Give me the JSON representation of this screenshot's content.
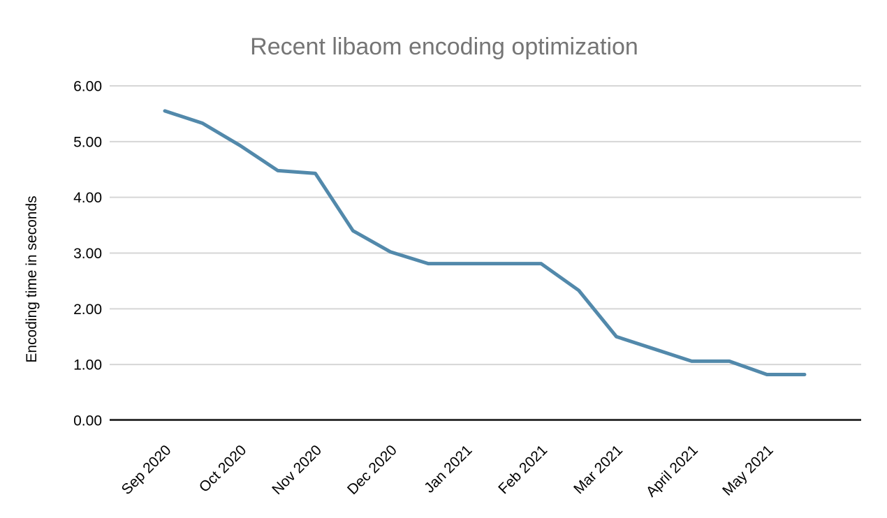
{
  "page": {
    "background": "#ffffff"
  },
  "chart_data": {
    "type": "line",
    "title": "Recent libaom encoding optimization",
    "ylabel": "Encoding time in seconds",
    "xlabel": "",
    "categories": [
      "Sep 2020",
      "",
      "Oct 2020",
      "",
      "Nov 2020",
      "",
      "Dec 2020",
      "",
      "Jan 2021",
      "",
      "Feb 2021",
      "",
      "Mar 2021",
      "",
      "April 2021",
      "",
      "May 2021",
      ""
    ],
    "values": [
      5.55,
      5.33,
      4.93,
      4.48,
      4.43,
      3.4,
      3.02,
      2.81,
      2.81,
      2.81,
      2.81,
      2.33,
      1.5,
      1.28,
      1.06,
      1.06,
      0.82,
      0.82
    ],
    "visible_x_tick_labels": [
      "Sep 2020",
      "Oct 2020",
      "Nov 2020",
      "Dec 2020",
      "Jan 2021",
      "Feb 2021",
      "Mar 2021",
      "April 2021",
      "May 2021"
    ],
    "ylim": [
      0,
      6
    ],
    "y_tick_step": 1,
    "y_tick_decimals": 2,
    "grid": "horizontal",
    "legend": "none",
    "x_label_rotation_deg": 45,
    "colors": {
      "series_line": "#5289ab",
      "gridline": "#d6d6d6",
      "axis_line": "#333333",
      "title_text": "#757575",
      "tick_text": "#000000"
    }
  }
}
